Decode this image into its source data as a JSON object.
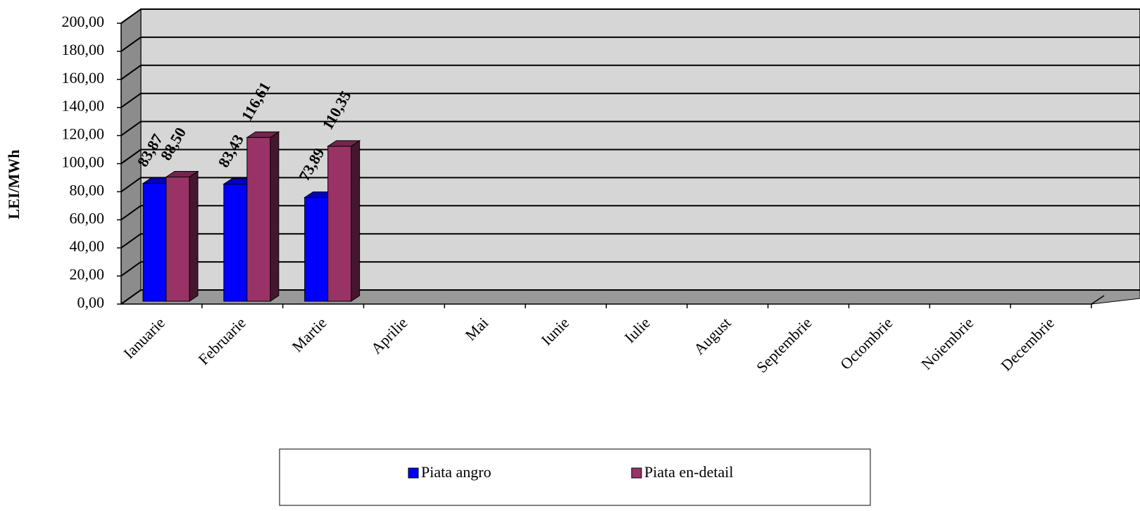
{
  "chart_data": {
    "type": "bar3d",
    "y_label": "LEI/MWh",
    "categories": [
      "Ianuarie",
      "Februarie",
      "Martie",
      "Aprilie",
      "Mai",
      "Iunie",
      "Iulie",
      "August",
      "Septembrie",
      "Octombrie",
      "Noiembrie",
      "Decembrie"
    ],
    "series": [
      {
        "name": "Piata angro",
        "color": "#0000ff",
        "values": [
          83.87,
          83.43,
          73.89,
          null,
          null,
          null,
          null,
          null,
          null,
          null,
          null,
          null
        ],
        "value_labels": [
          "83,87",
          "83,43",
          "73,89",
          null,
          null,
          null,
          null,
          null,
          null,
          null,
          null,
          null
        ]
      },
      {
        "name": "Piata en-detail",
        "color": "#993366",
        "values": [
          88.5,
          116.61,
          110.35,
          null,
          null,
          null,
          null,
          null,
          null,
          null,
          null,
          null
        ],
        "value_labels": [
          "88,50",
          "116,61",
          "110,35",
          null,
          null,
          null,
          null,
          null,
          null,
          null,
          null,
          null
        ]
      }
    ],
    "ylim": [
      0,
      200
    ],
    "yticks": [
      {
        "value": 0,
        "label": "0,00"
      },
      {
        "value": 20,
        "label": "20,00"
      },
      {
        "value": 40,
        "label": "40,00"
      },
      {
        "value": 60,
        "label": "60,00"
      },
      {
        "value": 80,
        "label": "80,00"
      },
      {
        "value": 100,
        "label": "100,00"
      },
      {
        "value": 120,
        "label": "120,00"
      },
      {
        "value": 140,
        "label": "140,00"
      },
      {
        "value": 160,
        "label": "160,00"
      },
      {
        "value": 180,
        "label": "180,00"
      },
      {
        "value": 200,
        "label": "200,00"
      }
    ],
    "grid": true,
    "legend": "bottom"
  }
}
